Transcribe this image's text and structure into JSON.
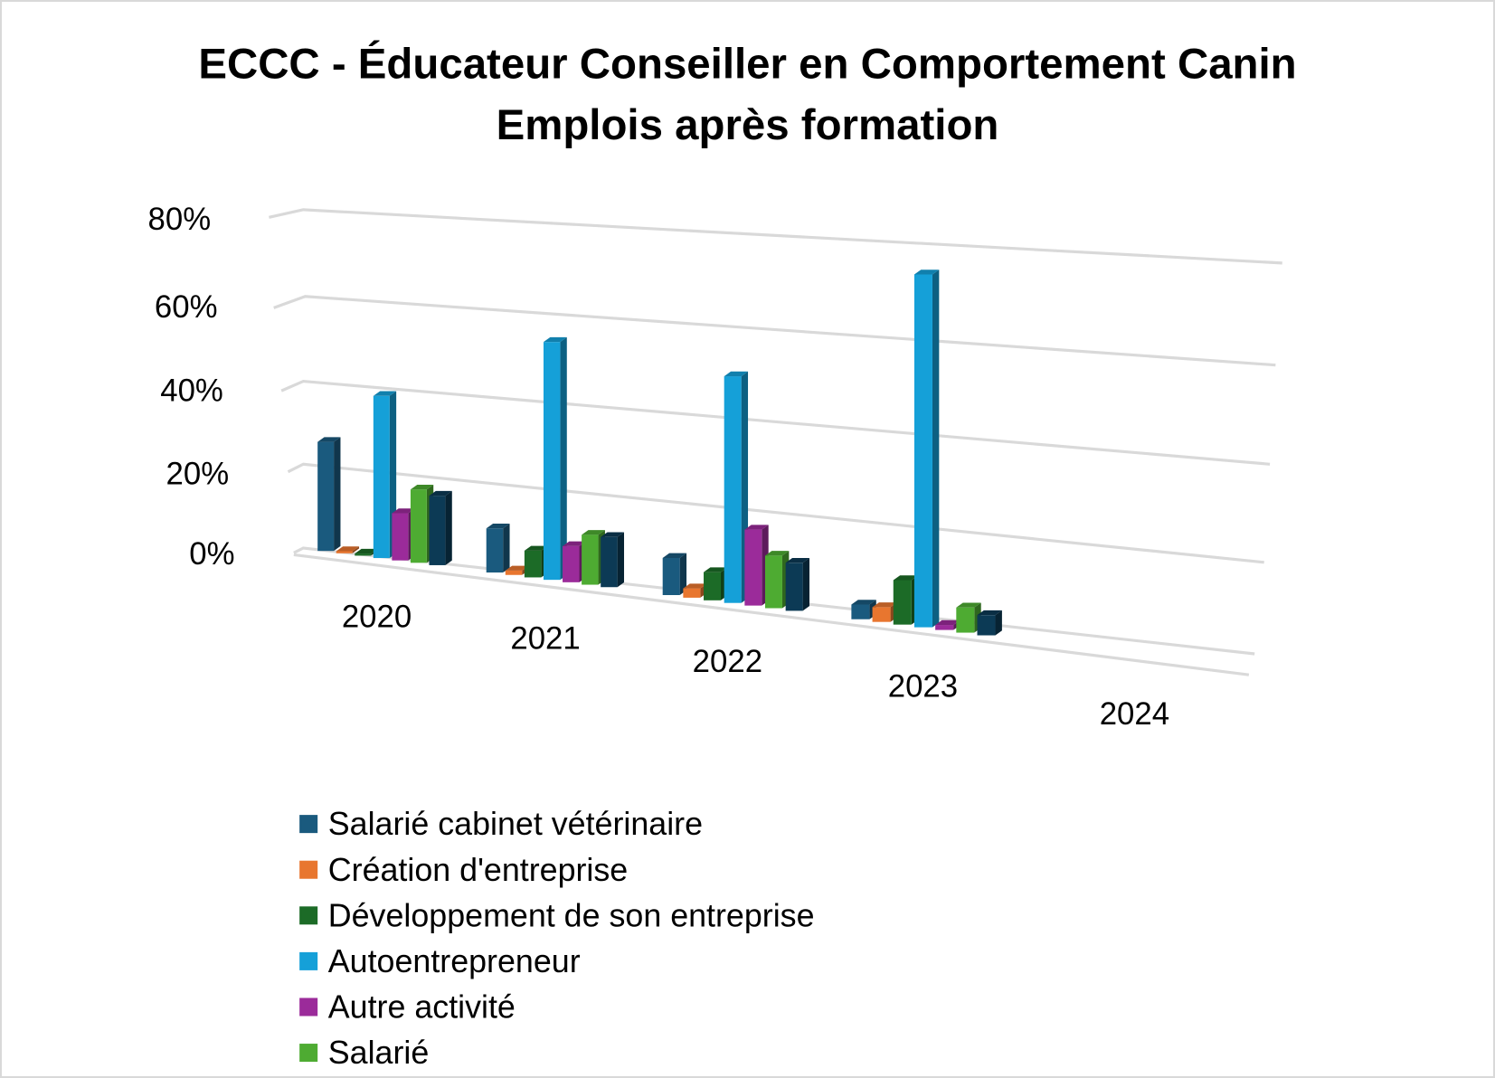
{
  "chart_data": {
    "type": "bar",
    "subtype": "3d-clustered-column",
    "title": [
      "ECCC - Éducateur Conseiller en Comportement Canin",
      "Emplois après formation"
    ],
    "xlabel": "",
    "ylabel": "",
    "ylim": [
      0,
      80
    ],
    "yticks": [
      "0%",
      "20%",
      "40%",
      "60%",
      "80%"
    ],
    "grid": true,
    "legend_position": "bottom-left",
    "categories": [
      "2020",
      "2021",
      "2022",
      "2023",
      "2024"
    ],
    "series": [
      {
        "name": "Salarié cabinet vétérinaire",
        "color": "#1a5a7e",
        "values": [
          26,
          10,
          8,
          3,
          null
        ]
      },
      {
        "name": "Création d'entreprise",
        "color": "#e8762f",
        "values": [
          0.5,
          1,
          2,
          3,
          null
        ]
      },
      {
        "name": "Développement de son entreprise",
        "color": "#1c6b27",
        "values": [
          0.5,
          6,
          6,
          9,
          null
        ]
      },
      {
        "name": "Autoentrepreneur",
        "color": "#15a0d8",
        "values": [
          38,
          53,
          48,
          71,
          null
        ]
      },
      {
        "name": "Autre activité",
        "color": "#9b2b9a",
        "values": [
          11,
          8,
          16,
          1,
          null
        ]
      },
      {
        "name": "Salarié",
        "color": "#4eab32",
        "values": [
          17,
          11,
          11,
          5,
          null
        ]
      },
      {
        "name": "",
        "color": "#0c3a55",
        "values": [
          16,
          11,
          10,
          4,
          null
        ]
      }
    ]
  }
}
